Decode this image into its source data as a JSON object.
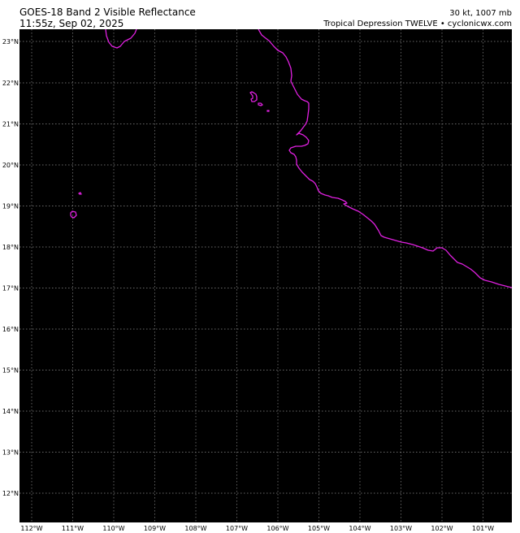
{
  "header": {
    "title": "GOES-18 Band 2 Visible Reflectance",
    "timestamp": "11:55z, Sep 02, 2025",
    "intensity": "30 kt, 1007 mb",
    "storm_source": "Tropical Depression TWELVE • cyclonicwx.com"
  },
  "map": {
    "lon_labels": [
      "112°W",
      "111°W",
      "110°W",
      "109°W",
      "108°W",
      "107°W",
      "106°W",
      "105°W",
      "104°W",
      "103°W",
      "102°W",
      "101°W"
    ],
    "lat_labels": [
      "23°N",
      "22°N",
      "21°N",
      "20°N",
      "19°N",
      "18°N",
      "17°N",
      "16°N",
      "15°N",
      "14°N",
      "13°N",
      "12°N"
    ],
    "colors": {
      "background": "#000000",
      "coastline": "#e020e0",
      "grid": "#888888"
    }
  }
}
